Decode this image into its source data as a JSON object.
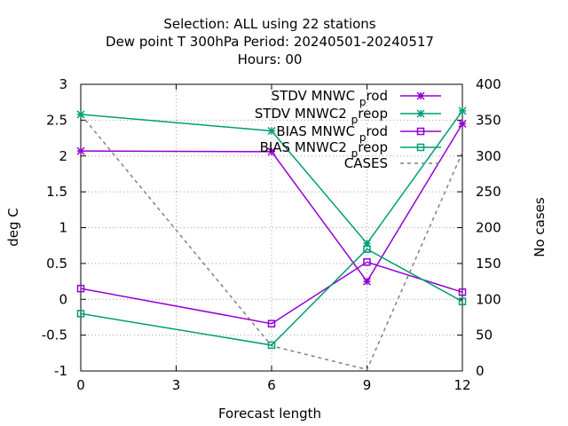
{
  "chart_data": {
    "type": "line",
    "title_lines": [
      "Selection: ALL using    22 stations",
      "Dew point T 300hPa   Period: 20240501-20240517",
      "Hours:  00"
    ],
    "xlabel": "Forecast length",
    "ylabel": "deg C",
    "y2label": "No cases",
    "x": [
      0,
      6,
      9,
      12
    ],
    "xlim": [
      0,
      12
    ],
    "ylim": [
      -1,
      3
    ],
    "y2lim": [
      0,
      400
    ],
    "x_ticks": [
      "0",
      "3",
      "6",
      "9",
      "12"
    ],
    "y_ticks": [
      "-1",
      "-0.5",
      "0",
      "0.5",
      "1",
      "1.5",
      "2",
      "2.5",
      "3"
    ],
    "y2_ticks": [
      "0",
      "50",
      "100",
      "150",
      "200",
      "250",
      "300",
      "350",
      "400"
    ],
    "grid": true,
    "legend_position": "top-right",
    "series": [
      {
        "name": "STDV MNWC_prod",
        "legend_main": "STDV MNWC",
        "legend_sub": "p",
        "legend_tail": "rod",
        "axis": "y1",
        "color": "#9400d3",
        "marker": "star",
        "dash": "solid",
        "values": [
          2.07,
          2.06,
          0.25,
          2.45
        ]
      },
      {
        "name": "STDV MNWC2_preop",
        "legend_main": "STDV MNWC2",
        "legend_sub": "p",
        "legend_tail": "reop",
        "axis": "y1",
        "color": "#009e73",
        "marker": "star",
        "dash": "solid",
        "values": [
          2.58,
          2.35,
          0.78,
          2.63
        ]
      },
      {
        "name": "BIAS MNWC_prod",
        "legend_main": "BIAS MNWC",
        "legend_sub": "p",
        "legend_tail": "rod",
        "axis": "y1",
        "color": "#9400d3",
        "marker": "square",
        "dash": "solid",
        "values": [
          0.15,
          -0.34,
          0.52,
          0.1
        ]
      },
      {
        "name": "BIAS MNWC2_preop",
        "legend_main": "BIAS MNWC2",
        "legend_sub": "p",
        "legend_tail": "reop",
        "axis": "y1",
        "color": "#009e73",
        "marker": "square",
        "dash": "solid",
        "values": [
          -0.2,
          -0.64,
          0.7,
          -0.03
        ]
      },
      {
        "name": "CASES",
        "legend_main": "CASES",
        "legend_sub": "",
        "legend_tail": "",
        "axis": "y2",
        "color": "#808080",
        "marker": "none",
        "dash": "dashed",
        "values": [
          358,
          35,
          2,
          305
        ]
      }
    ]
  }
}
